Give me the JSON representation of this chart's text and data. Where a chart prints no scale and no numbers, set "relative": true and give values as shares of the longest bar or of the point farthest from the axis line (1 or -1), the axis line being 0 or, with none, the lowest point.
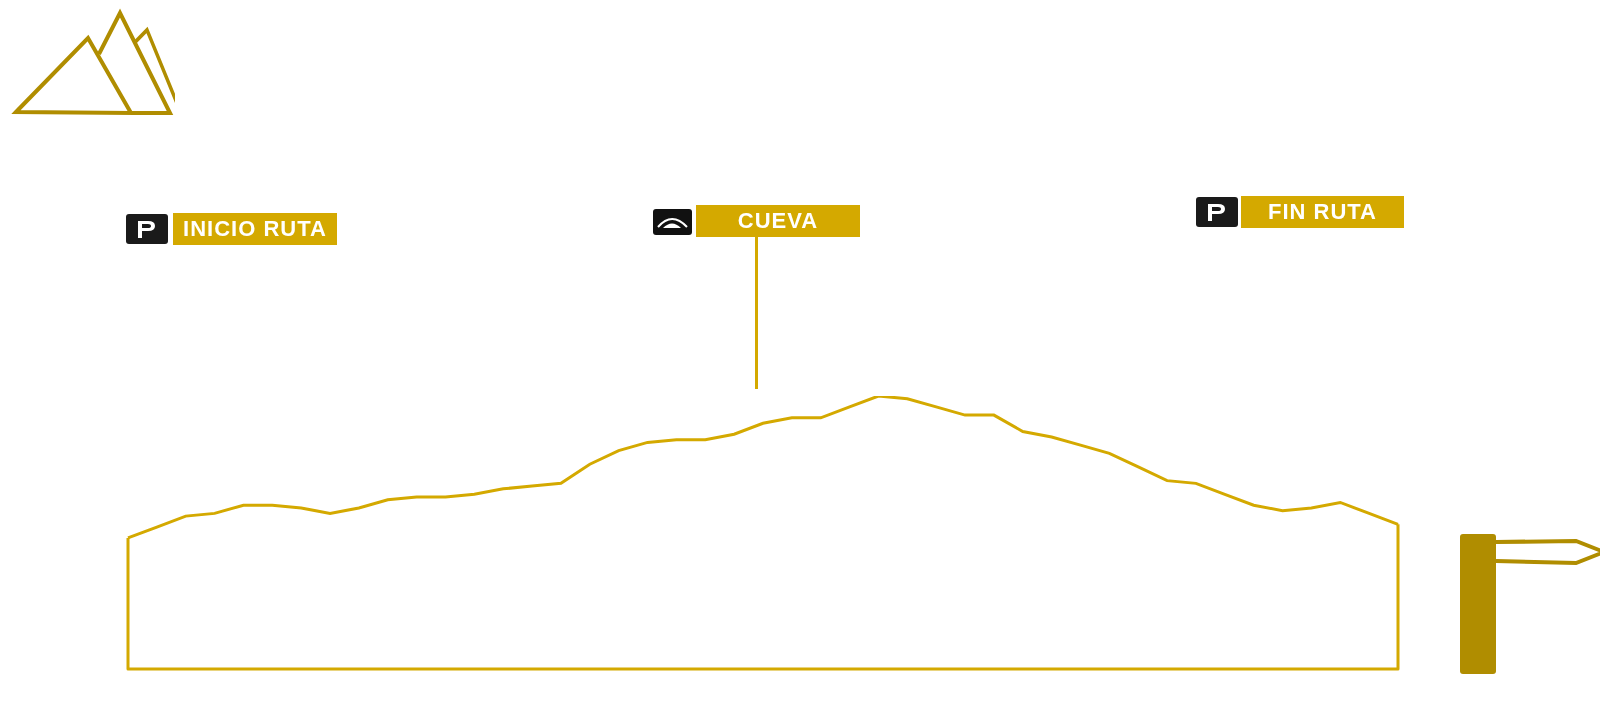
{
  "chart_data": {
    "type": "line",
    "relative": true,
    "color": "#d4a900",
    "categories": [
      null,
      null,
      null,
      null,
      null,
      null,
      null,
      null,
      null,
      null,
      null,
      null,
      null,
      null,
      null,
      null,
      null,
      null,
      null,
      null,
      null,
      null,
      null,
      null,
      null,
      null,
      null,
      null,
      null,
      null,
      null,
      null,
      null,
      null,
      null,
      null,
      null,
      null,
      null,
      null,
      null,
      null,
      null,
      null,
      null
    ],
    "values": [
      0.48,
      0.52,
      0.56,
      0.57,
      0.6,
      0.6,
      0.59,
      0.57,
      0.59,
      0.62,
      0.63,
      0.63,
      0.64,
      0.66,
      0.67,
      0.68,
      0.75,
      0.8,
      0.83,
      0.84,
      0.84,
      0.86,
      0.9,
      0.92,
      0.92,
      0.96,
      1,
      0.99,
      0.96,
      0.93,
      0.93,
      0.87,
      0.85,
      0.82,
      0.79,
      0.74,
      0.69,
      0.68,
      0.64,
      0.6,
      0.58,
      0.59,
      0.61,
      0.57,
      0.53
    ],
    "annotations": [
      "INICIO RUTA",
      "CUEVA",
      "FIN RUTA"
    ]
  }
}
